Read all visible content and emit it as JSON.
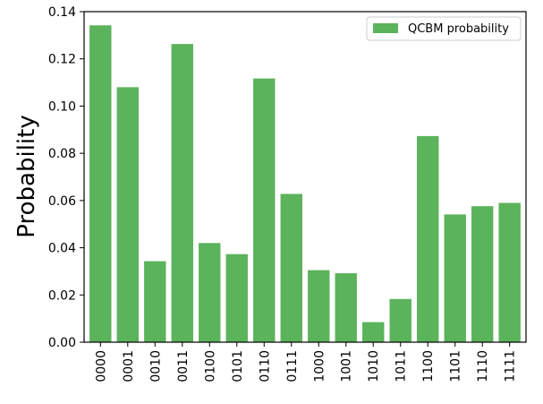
{
  "chart_data": {
    "type": "bar",
    "title": "",
    "xlabel": "",
    "ylabel": "Probability",
    "ylim": [
      0,
      0.14
    ],
    "yticks": [
      "0.00",
      "0.02",
      "0.04",
      "0.06",
      "0.08",
      "0.10",
      "0.12",
      "0.14"
    ],
    "grid": false,
    "legend_position": "top-right",
    "categories": [
      "0000",
      "0001",
      "0010",
      "0011",
      "0100",
      "0101",
      "0110",
      "0111",
      "1000",
      "1001",
      "1010",
      "1011",
      "1100",
      "1101",
      "1110",
      "1111"
    ],
    "series": [
      {
        "name": "QCBM probability",
        "color": "#5bb35b",
        "values": [
          0.1342,
          0.108,
          0.0343,
          0.1263,
          0.042,
          0.0373,
          0.1117,
          0.0628,
          0.0305,
          0.0292,
          0.0085,
          0.0183,
          0.0873,
          0.0541,
          0.0576,
          0.059
        ]
      }
    ]
  }
}
